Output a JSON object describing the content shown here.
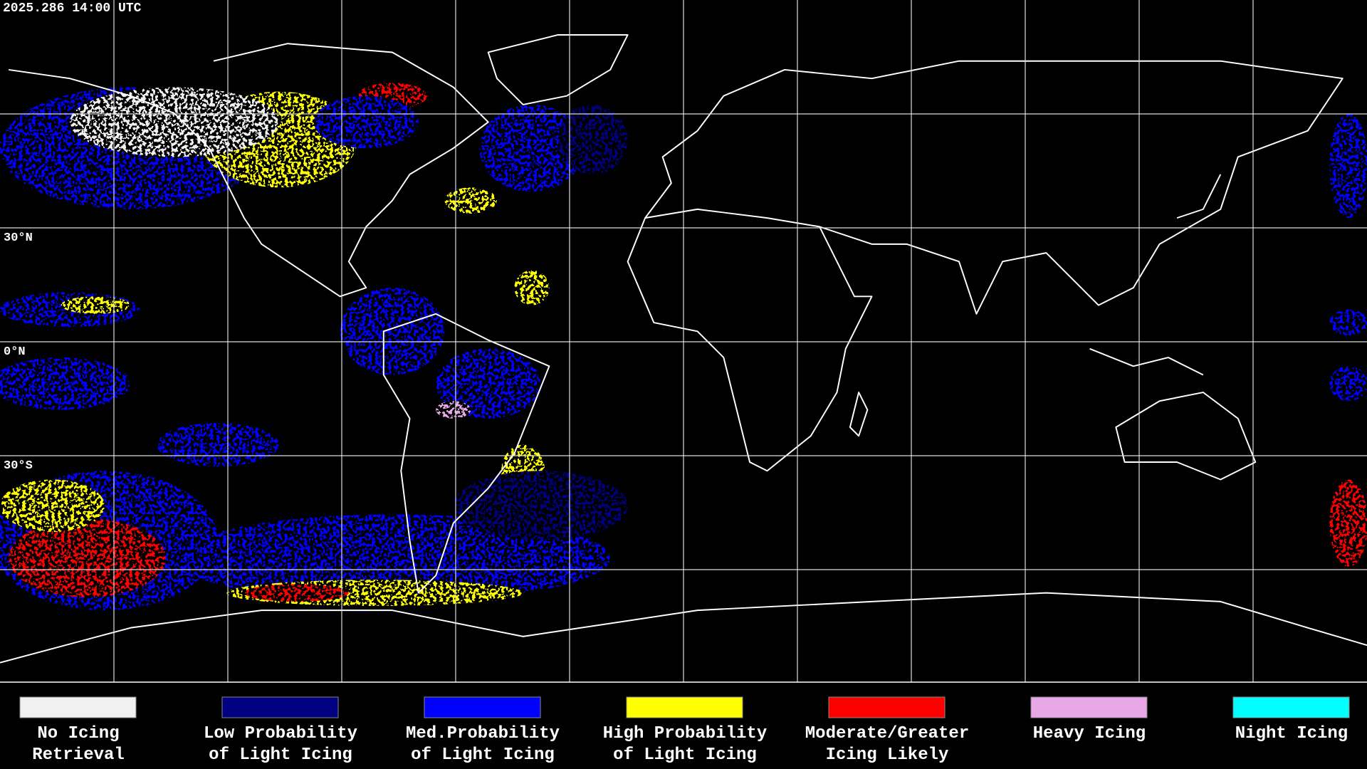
{
  "timestamp": "2025.286 14:00 UTC",
  "latitude_labels": [
    "30°N",
    "0°N",
    "30°S"
  ],
  "legend": [
    {
      "lines": [
        "No Icing",
        "Retrieval"
      ],
      "color": "#f0f0f0"
    },
    {
      "lines": [
        "Low Probability",
        "of Light Icing"
      ],
      "color": "#000080"
    },
    {
      "lines": [
        "Med.Probability",
        "of Light Icing"
      ],
      "color": "#0000ff"
    },
    {
      "lines": [
        "High Probability",
        "of Light Icing"
      ],
      "color": "#ffff00"
    },
    {
      "lines": [
        "Moderate/Greater",
        "Icing Likely"
      ],
      "color": "#ff0000"
    },
    {
      "lines": [
        "Heavy Icing"
      ],
      "color": "#e8a8e8"
    },
    {
      "lines": [
        "Night Icing"
      ],
      "color": "#00ffff"
    }
  ]
}
